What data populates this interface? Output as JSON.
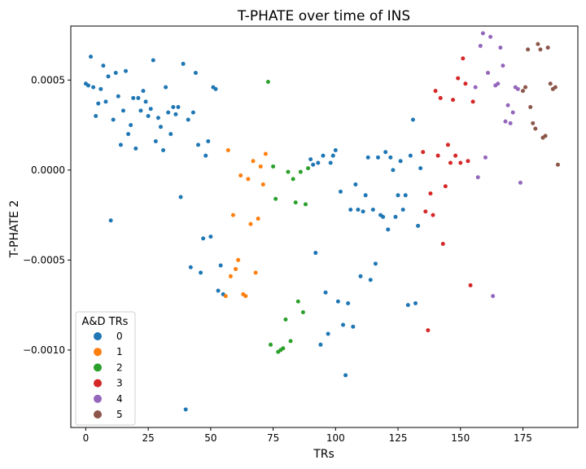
{
  "chart_data": {
    "type": "scatter",
    "title": "T-PHATE over time of INS",
    "xlabel": "TRs",
    "ylabel": "T-PHATE 2",
    "xlim": [
      -6,
      197
    ],
    "ylim": [
      -0.00143,
      0.0008
    ],
    "xticks": [
      0,
      25,
      50,
      75,
      100,
      125,
      150,
      175
    ],
    "xtick_labels": [
      "0",
      "25",
      "50",
      "75",
      "100",
      "125",
      "150",
      "175"
    ],
    "yticks": [
      -0.001,
      -0.0005,
      0.0,
      0.0005
    ],
    "ytick_labels": [
      "−0.0010",
      "−0.0005",
      "0.0000",
      "0.0005"
    ],
    "grid": false,
    "legend": {
      "title": "A&D TRs",
      "placement": "lower-left",
      "entries": [
        "0",
        "1",
        "2",
        "3",
        "4",
        "5"
      ]
    },
    "series": [
      {
        "name": "0",
        "color": "#1f77b4",
        "points": [
          [
            0,
            0.00048
          ],
          [
            1,
            0.00047
          ],
          [
            2,
            0.00063
          ],
          [
            3,
            0.00046
          ],
          [
            4,
            0.0003
          ],
          [
            5,
            0.00037
          ],
          [
            6,
            0.00045
          ],
          [
            7,
            0.00058
          ],
          [
            8,
            0.00038
          ],
          [
            9,
            0.00052
          ],
          [
            10,
            -0.00028
          ],
          [
            11,
            0.00028
          ],
          [
            12,
            0.00054
          ],
          [
            13,
            0.00041
          ],
          [
            14,
            0.00014
          ],
          [
            15,
            0.00033
          ],
          [
            16,
            0.00055
          ],
          [
            17,
            0.0002
          ],
          [
            18,
            0.00025
          ],
          [
            19,
            0.0004
          ],
          [
            20,
            0.00012
          ],
          [
            21,
            0.0004
          ],
          [
            22,
            0.00033
          ],
          [
            23,
            0.00044
          ],
          [
            24,
            0.00038
          ],
          [
            25,
            0.0003
          ],
          [
            26,
            0.00034
          ],
          [
            27,
            0.00061
          ],
          [
            28,
            0.00016
          ],
          [
            29,
            0.00029
          ],
          [
            30,
            0.00024
          ],
          [
            31,
            0.00011
          ],
          [
            32,
            0.00046
          ],
          [
            33,
            0.00032
          ],
          [
            34,
            0.0002
          ],
          [
            35,
            0.00035
          ],
          [
            36,
            0.00031
          ],
          [
            37,
            0.00035
          ],
          [
            38,
            -0.00015
          ],
          [
            39,
            0.00059
          ],
          [
            40,
            -0.00133
          ],
          [
            41,
            0.00028
          ],
          [
            42,
            -0.00054
          ],
          [
            43,
            0.00032
          ],
          [
            44,
            0.00054
          ],
          [
            45,
            0.00014
          ],
          [
            46,
            -0.00057
          ],
          [
            47,
            -0.00038
          ],
          [
            48,
            8e-05
          ],
          [
            49,
            0.00016
          ],
          [
            50,
            -0.00037
          ],
          [
            51,
            0.00046
          ],
          [
            52,
            0.00045
          ],
          [
            53,
            -0.00067
          ],
          [
            54,
            -0.00053
          ],
          [
            55,
            -0.00069
          ],
          [
            90,
            6e-05
          ],
          [
            91,
            3e-05
          ],
          [
            92,
            -0.00046
          ],
          [
            93,
            4e-05
          ],
          [
            94,
            -0.00097
          ],
          [
            95,
            8e-05
          ],
          [
            96,
            -0.00068
          ],
          [
            97,
            -0.00091
          ],
          [
            98,
            4e-05
          ],
          [
            99,
            8e-05
          ],
          [
            100,
            0.00011
          ],
          [
            101,
            -0.00073
          ],
          [
            102,
            -0.00012
          ],
          [
            103,
            -0.00086
          ],
          [
            104,
            -0.00114
          ],
          [
            105,
            -0.00074
          ],
          [
            106,
            -0.00022
          ],
          [
            107,
            -0.00087
          ],
          [
            108,
            -8e-05
          ],
          [
            109,
            -0.00022
          ],
          [
            110,
            -0.00059
          ],
          [
            111,
            -0.00023
          ],
          [
            112,
            -0.00014
          ],
          [
            113,
            7e-05
          ],
          [
            114,
            -0.00061
          ],
          [
            115,
            -0.00022
          ],
          [
            116,
            -0.00052
          ],
          [
            117,
            7e-05
          ],
          [
            118,
            -0.00025
          ],
          [
            119,
            -0.00026
          ],
          [
            120,
            0.0001
          ],
          [
            121,
            -0.00033
          ],
          [
            122,
            7e-05
          ],
          [
            123,
            0.0
          ],
          [
            124,
            -0.00026
          ],
          [
            125,
            -0.00014
          ],
          [
            126,
            5e-05
          ],
          [
            127,
            -0.00022
          ],
          [
            128,
            -0.00014
          ],
          [
            129,
            -0.00075
          ],
          [
            130,
            8e-05
          ],
          [
            131,
            0.00028
          ],
          [
            132,
            -0.00074
          ],
          [
            133,
            -0.00031
          ],
          [
            134,
            1e-05
          ]
        ]
      },
      {
        "name": "1",
        "color": "#ff7f0e",
        "points": [
          [
            56,
            -0.0007
          ],
          [
            57,
            0.00011
          ],
          [
            58,
            -0.00059
          ],
          [
            59,
            -0.00025
          ],
          [
            60,
            -0.00055
          ],
          [
            61,
            -0.0005
          ],
          [
            62,
            -3e-05
          ],
          [
            63,
            -0.00069
          ],
          [
            64,
            -0.0007
          ],
          [
            65,
            -5e-05
          ],
          [
            66,
            -0.0003
          ],
          [
            67,
            5e-05
          ],
          [
            68,
            -0.00057
          ],
          [
            69,
            -0.00027
          ],
          [
            70,
            2e-05
          ],
          [
            71,
            -8e-05
          ],
          [
            72,
            9e-05
          ]
        ]
      },
      {
        "name": "2",
        "color": "#2ca02c",
        "points": [
          [
            73,
            0.00049
          ],
          [
            74,
            -0.00097
          ],
          [
            75,
            2e-05
          ],
          [
            76,
            -0.00016
          ],
          [
            77,
            -0.00101
          ],
          [
            78,
            -0.001
          ],
          [
            79,
            -0.00099
          ],
          [
            80,
            -0.00083
          ],
          [
            81,
            -1e-05
          ],
          [
            82,
            -0.00095
          ],
          [
            83,
            -5e-05
          ],
          [
            84,
            -0.00018
          ],
          [
            85,
            -0.00073
          ],
          [
            86,
            -1e-05
          ],
          [
            87,
            -0.00079
          ],
          [
            88,
            -0.00019
          ],
          [
            89,
            1e-05
          ]
        ]
      },
      {
        "name": "3",
        "color": "#d62728",
        "points": [
          [
            135,
            0.0001
          ],
          [
            136,
            -0.00023
          ],
          [
            137,
            -0.00089
          ],
          [
            138,
            -0.00013
          ],
          [
            139,
            -0.00025
          ],
          [
            140,
            0.00044
          ],
          [
            141,
            8e-05
          ],
          [
            142,
            0.0004
          ],
          [
            143,
            -0.00041
          ],
          [
            144,
            -9e-05
          ],
          [
            145,
            0.00014
          ],
          [
            146,
            4e-05
          ],
          [
            147,
            0.00039
          ],
          [
            148,
            8e-05
          ],
          [
            149,
            0.00051
          ],
          [
            150,
            4e-05
          ],
          [
            151,
            0.00062
          ],
          [
            152,
            0.00048
          ],
          [
            153,
            5e-05
          ],
          [
            154,
            -0.00064
          ],
          [
            155,
            0.00038
          ]
        ]
      },
      {
        "name": "4",
        "color": "#9467bd",
        "points": [
          [
            156,
            0.00046
          ],
          [
            157,
            -4e-05
          ],
          [
            158,
            0.00069
          ],
          [
            159,
            0.00076
          ],
          [
            160,
            7e-05
          ],
          [
            161,
            0.00054
          ],
          [
            162,
            0.00074
          ],
          [
            163,
            -0.0007
          ],
          [
            164,
            0.00047
          ],
          [
            165,
            0.00048
          ],
          [
            166,
            0.00068
          ],
          [
            167,
            0.00058
          ],
          [
            168,
            0.00027
          ],
          [
            169,
            0.00036
          ],
          [
            170,
            0.00026
          ],
          [
            171,
            0.00032
          ],
          [
            172,
            0.00046
          ],
          [
            173,
            0.00045
          ],
          [
            174,
            -7e-05
          ]
        ]
      },
      {
        "name": "5",
        "color": "#8c564b",
        "points": [
          [
            175,
            0.00044
          ],
          [
            176,
            0.00046
          ],
          [
            177,
            0.00067
          ],
          [
            178,
            0.00035
          ],
          [
            179,
            0.00026
          ],
          [
            180,
            0.00023
          ],
          [
            181,
            0.0007
          ],
          [
            182,
            0.00067
          ],
          [
            183,
            0.00018
          ],
          [
            184,
            0.00019
          ],
          [
            185,
            0.00068
          ],
          [
            186,
            0.00048
          ],
          [
            187,
            0.00045
          ],
          [
            188,
            0.00046
          ],
          [
            189,
            3e-05
          ]
        ]
      }
    ]
  }
}
